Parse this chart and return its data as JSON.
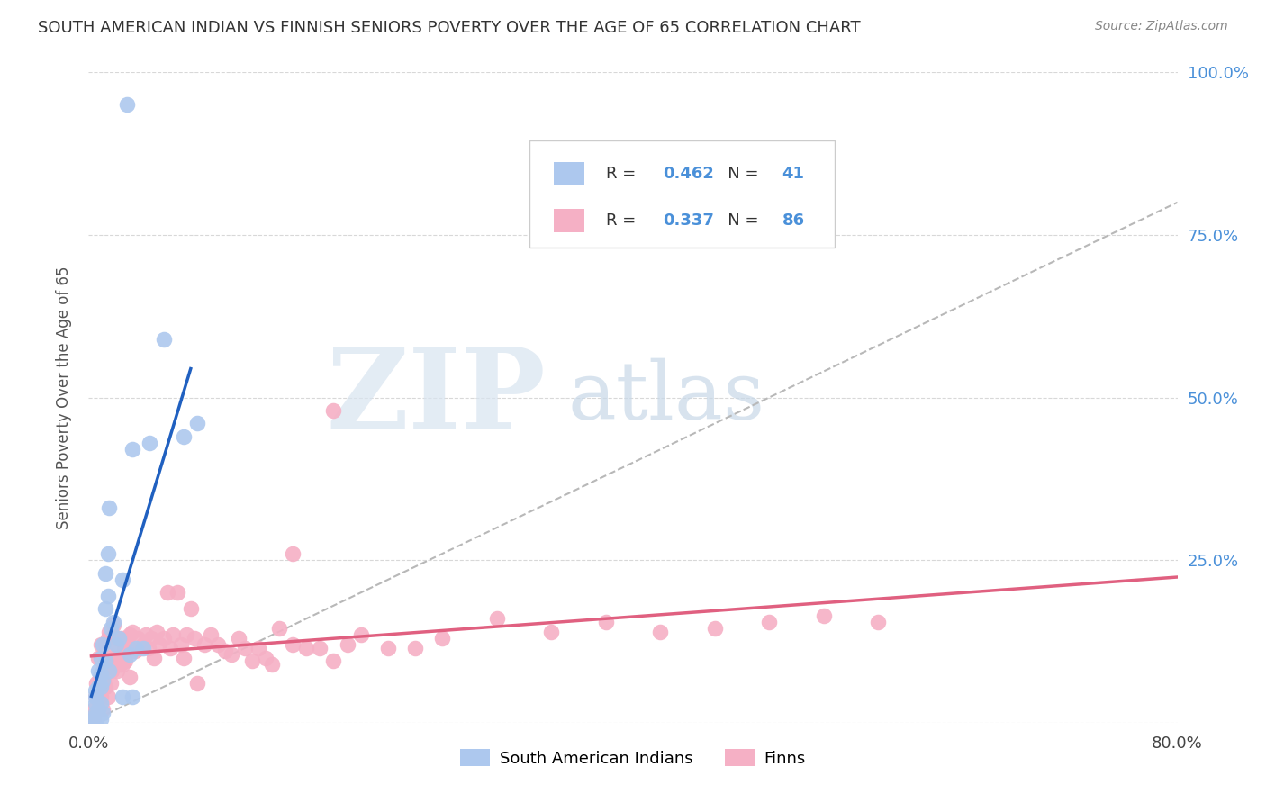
{
  "title": "SOUTH AMERICAN INDIAN VS FINNISH SENIORS POVERTY OVER THE AGE OF 65 CORRELATION CHART",
  "source": "Source: ZipAtlas.com",
  "ylabel": "Seniors Poverty Over the Age of 65",
  "xlim": [
    0.0,
    0.8
  ],
  "ylim": [
    0.0,
    1.0
  ],
  "blue_R": "0.462",
  "blue_N": "41",
  "pink_R": "0.337",
  "pink_N": "86",
  "blue_color": "#adc8ee",
  "blue_line_color": "#2060c0",
  "pink_color": "#f5b0c5",
  "pink_line_color": "#e06080",
  "diagonal_color": "#b8b8b8",
  "watermark_zip": "ZIP",
  "watermark_atlas": "atlas",
  "blue_scatter_x": [
    0.005,
    0.005,
    0.005,
    0.005,
    0.005,
    0.005,
    0.005,
    0.007,
    0.007,
    0.007,
    0.009,
    0.009,
    0.009,
    0.009,
    0.009,
    0.01,
    0.01,
    0.01,
    0.012,
    0.012,
    0.012,
    0.014,
    0.014,
    0.015,
    0.015,
    0.016,
    0.018,
    0.02,
    0.022,
    0.025,
    0.025,
    0.03,
    0.032,
    0.032,
    0.035,
    0.04,
    0.045,
    0.055,
    0.07,
    0.08,
    0.028
  ],
  "blue_scatter_y": [
    0.05,
    0.04,
    0.03,
    0.015,
    0.01,
    0.005,
    0.0,
    0.08,
    0.055,
    0.02,
    0.1,
    0.075,
    0.055,
    0.03,
    0.005,
    0.12,
    0.065,
    0.015,
    0.23,
    0.175,
    0.095,
    0.26,
    0.195,
    0.33,
    0.08,
    0.145,
    0.155,
    0.12,
    0.13,
    0.22,
    0.04,
    0.105,
    0.42,
    0.04,
    0.115,
    0.115,
    0.43,
    0.59,
    0.44,
    0.46,
    0.95
  ],
  "pink_scatter_x": [
    0.004,
    0.004,
    0.005,
    0.006,
    0.007,
    0.008,
    0.009,
    0.009,
    0.01,
    0.01,
    0.011,
    0.012,
    0.012,
    0.013,
    0.014,
    0.014,
    0.015,
    0.016,
    0.016,
    0.017,
    0.018,
    0.019,
    0.02,
    0.021,
    0.022,
    0.023,
    0.024,
    0.025,
    0.026,
    0.027,
    0.028,
    0.03,
    0.03,
    0.032,
    0.034,
    0.036,
    0.038,
    0.04,
    0.042,
    0.044,
    0.046,
    0.048,
    0.05,
    0.052,
    0.055,
    0.058,
    0.06,
    0.062,
    0.065,
    0.068,
    0.07,
    0.072,
    0.075,
    0.078,
    0.08,
    0.085,
    0.09,
    0.095,
    0.1,
    0.105,
    0.11,
    0.115,
    0.12,
    0.125,
    0.13,
    0.135,
    0.14,
    0.15,
    0.16,
    0.17,
    0.18,
    0.19,
    0.2,
    0.22,
    0.24,
    0.26,
    0.3,
    0.34,
    0.38,
    0.42,
    0.46,
    0.5,
    0.54,
    0.58,
    0.15,
    0.18
  ],
  "pink_scatter_y": [
    0.02,
    0.005,
    0.04,
    0.06,
    0.1,
    0.07,
    0.12,
    0.04,
    0.08,
    0.02,
    0.065,
    0.12,
    0.055,
    0.095,
    0.13,
    0.04,
    0.14,
    0.1,
    0.06,
    0.08,
    0.15,
    0.1,
    0.13,
    0.08,
    0.11,
    0.09,
    0.13,
    0.09,
    0.115,
    0.095,
    0.12,
    0.135,
    0.07,
    0.14,
    0.11,
    0.13,
    0.115,
    0.12,
    0.135,
    0.115,
    0.13,
    0.1,
    0.14,
    0.12,
    0.13,
    0.2,
    0.115,
    0.135,
    0.2,
    0.12,
    0.1,
    0.135,
    0.175,
    0.13,
    0.06,
    0.12,
    0.135,
    0.12,
    0.11,
    0.105,
    0.13,
    0.115,
    0.095,
    0.115,
    0.1,
    0.09,
    0.145,
    0.12,
    0.115,
    0.115,
    0.095,
    0.12,
    0.135,
    0.115,
    0.115,
    0.13,
    0.16,
    0.14,
    0.155,
    0.14,
    0.145,
    0.155,
    0.165,
    0.155,
    0.26,
    0.48
  ]
}
